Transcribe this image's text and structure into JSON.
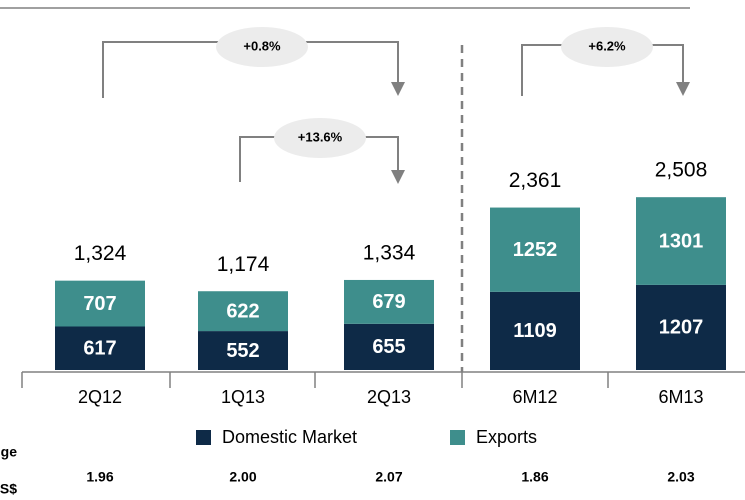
{
  "chart_data": {
    "type": "stacked_bar",
    "categories": [
      "2Q12",
      "1Q13",
      "2Q13",
      "6M12",
      "6M13"
    ],
    "series": [
      {
        "name": "Domestic Market",
        "color": "#0e2a47",
        "values": [
          617,
          552,
          655,
          1109,
          1207
        ]
      },
      {
        "name": "Exports",
        "color": "#3e8e8c",
        "values": [
          707,
          622,
          679,
          1252,
          1301
        ]
      }
    ],
    "totals": {
      "values": [
        1324,
        1174,
        1334,
        2361,
        2508
      ],
      "value_labels": [
        "1,324",
        "1,174",
        "1,334",
        "2,361",
        "2,508"
      ]
    },
    "annotations": [
      {
        "text": "+0.8%"
      },
      {
        "text": "+13.6%"
      },
      {
        "text": "+6.2%"
      }
    ],
    "footer_row": {
      "labels": [
        "ge",
        "S$"
      ],
      "values": [
        "1.96",
        "2.00",
        "2.07",
        "1.86",
        "2.03"
      ]
    }
  }
}
